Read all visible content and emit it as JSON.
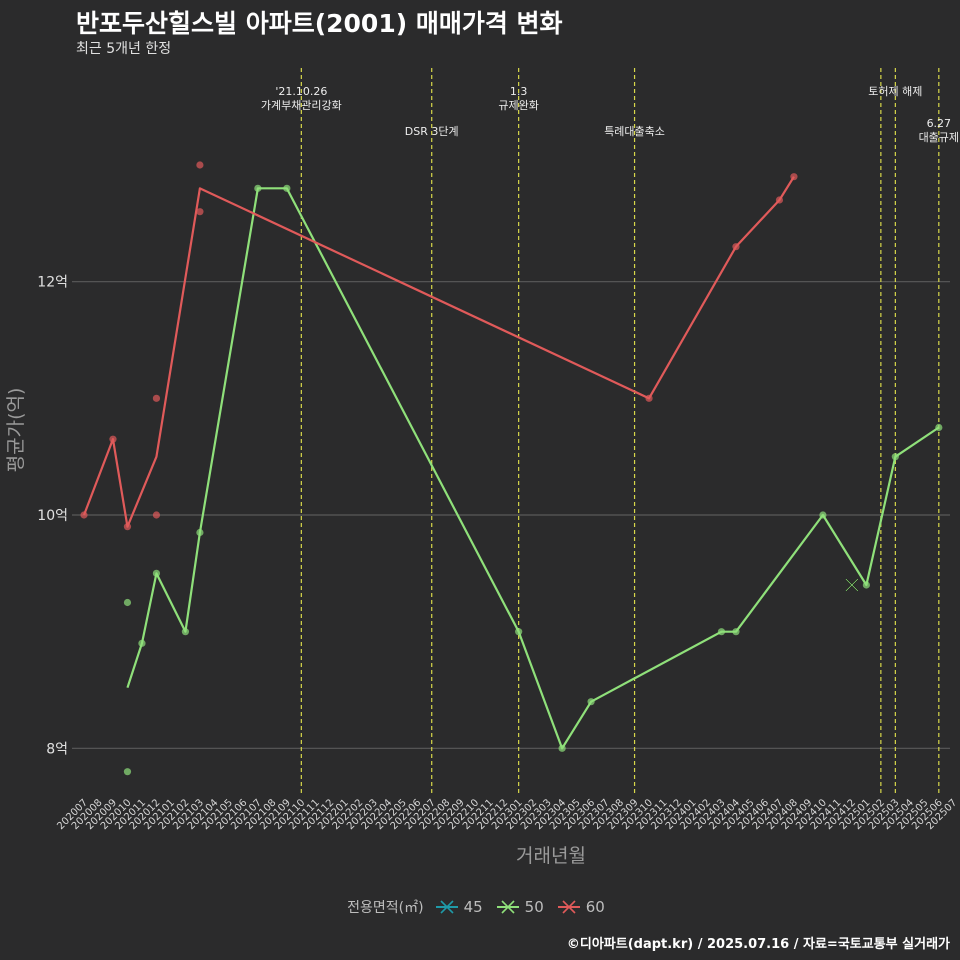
{
  "header": {
    "title": "반포두산힐스빌 아파트(2001) 매매가격 변화",
    "subtitle": "최근 5개년 한정"
  },
  "caption": "©디아파트(dapt.kr) / 2025.07.16 / 자료=국토교통부 실거래가",
  "legend": {
    "title": "전용면적(㎡)",
    "items": [
      {
        "label": "45",
        "color": "#1f9aa8"
      },
      {
        "label": "50",
        "color": "#8fe07a"
      },
      {
        "label": "60",
        "color": "#e05a5a"
      }
    ]
  },
  "chart_data": {
    "type": "line",
    "xlabel": "거래년월",
    "ylabel": "평균가(억)",
    "x_categories": [
      "202007",
      "202008",
      "202009",
      "202010",
      "202011",
      "202012",
      "202101",
      "202102",
      "202103",
      "202104",
      "202105",
      "202106",
      "202107",
      "202108",
      "202109",
      "202110",
      "202111",
      "202112",
      "202201",
      "202202",
      "202203",
      "202204",
      "202205",
      "202206",
      "202207",
      "202208",
      "202209",
      "202210",
      "202211",
      "202212",
      "202301",
      "202302",
      "202303",
      "202304",
      "202305",
      "202306",
      "202307",
      "202308",
      "202309",
      "202310",
      "202311",
      "202312",
      "202401",
      "202402",
      "202403",
      "202404",
      "202405",
      "202406",
      "202407",
      "202408",
      "202409",
      "202410",
      "202411",
      "202412",
      "202501",
      "202502",
      "202503",
      "202504",
      "202505",
      "202506",
      "202507"
    ],
    "y_ticks": [
      {
        "value": 8,
        "label": "8억"
      },
      {
        "value": 10,
        "label": "10억"
      },
      {
        "value": 12,
        "label": "12억"
      }
    ],
    "ylim": [
      7.6,
      13.9
    ],
    "grid": true,
    "legend_position": "bottom",
    "series": [
      {
        "name": "50",
        "color": "#8fe07a",
        "line": [
          [
            "202010",
            8.52
          ],
          [
            "202011",
            8.9
          ],
          [
            "202012",
            9.5
          ],
          [
            "202102",
            9.0
          ],
          [
            "202103",
            9.85
          ],
          [
            "202107",
            12.8
          ],
          [
            "202109",
            12.8
          ],
          [
            "202301",
            9.0
          ],
          [
            "202304",
            8.0
          ],
          [
            "202306",
            8.4
          ],
          [
            "202403",
            9.0
          ],
          [
            "202404",
            9.0
          ],
          [
            "202410",
            10.0
          ],
          [
            "202501",
            9.4
          ],
          [
            "202503",
            10.5
          ],
          [
            "202506",
            10.75
          ]
        ],
        "points": [
          [
            "202010",
            9.25
          ],
          [
            "202010",
            7.8
          ],
          [
            "202011",
            8.9
          ],
          [
            "202012",
            9.5
          ],
          [
            "202102",
            9.0
          ],
          [
            "202103",
            9.85
          ],
          [
            "202107",
            12.8
          ],
          [
            "202109",
            12.8
          ],
          [
            "202301",
            9.0
          ],
          [
            "202304",
            8.0
          ],
          [
            "202306",
            8.4
          ],
          [
            "202403",
            9.0
          ],
          [
            "202404",
            9.0
          ],
          [
            "202410",
            10.0
          ],
          [
            "202501",
            9.4
          ],
          [
            "202503",
            10.5
          ],
          [
            "202506",
            10.75
          ]
        ],
        "cross_marks": [
          [
            "202412",
            9.4
          ]
        ]
      },
      {
        "name": "60",
        "color": "#e05a5a",
        "line": [
          [
            "202007",
            10.0
          ],
          [
            "202009",
            10.65
          ],
          [
            "202010",
            9.9
          ],
          [
            "202012",
            10.5
          ],
          [
            "202103",
            12.8
          ],
          [
            "202310",
            11.0
          ],
          [
            "202404",
            12.3
          ],
          [
            "202407",
            12.7
          ],
          [
            "202408",
            12.9
          ]
        ],
        "points": [
          [
            "202007",
            10.0
          ],
          [
            "202009",
            10.65
          ],
          [
            "202010",
            9.9
          ],
          [
            "202012",
            11.0
          ],
          [
            "202012",
            10.0
          ],
          [
            "202103",
            13.0
          ],
          [
            "202103",
            12.6
          ],
          [
            "202310",
            11.0
          ],
          [
            "202404",
            12.3
          ],
          [
            "202407",
            12.7
          ],
          [
            "202408",
            12.9
          ]
        ]
      }
    ],
    "events": [
      {
        "x": "202110",
        "lines": [
          "'21.10.26",
          "가계부채관리강화"
        ],
        "level": 0
      },
      {
        "x": "202207",
        "lines": [
          "DSR 3단계"
        ],
        "level": 1
      },
      {
        "x": "202301",
        "lines": [
          "1.3",
          "규제완화"
        ],
        "level": 0
      },
      {
        "x": "202309",
        "lines": [
          "특례대출축소"
        ],
        "level": 1
      },
      {
        "x": "202502",
        "lines": [],
        "level": 0
      },
      {
        "x": "202503",
        "lines": [
          "토허제 해제"
        ],
        "level": 0
      },
      {
        "x": "202506",
        "lines": [
          "6.27",
          "대출규제"
        ],
        "level": 2
      }
    ]
  }
}
